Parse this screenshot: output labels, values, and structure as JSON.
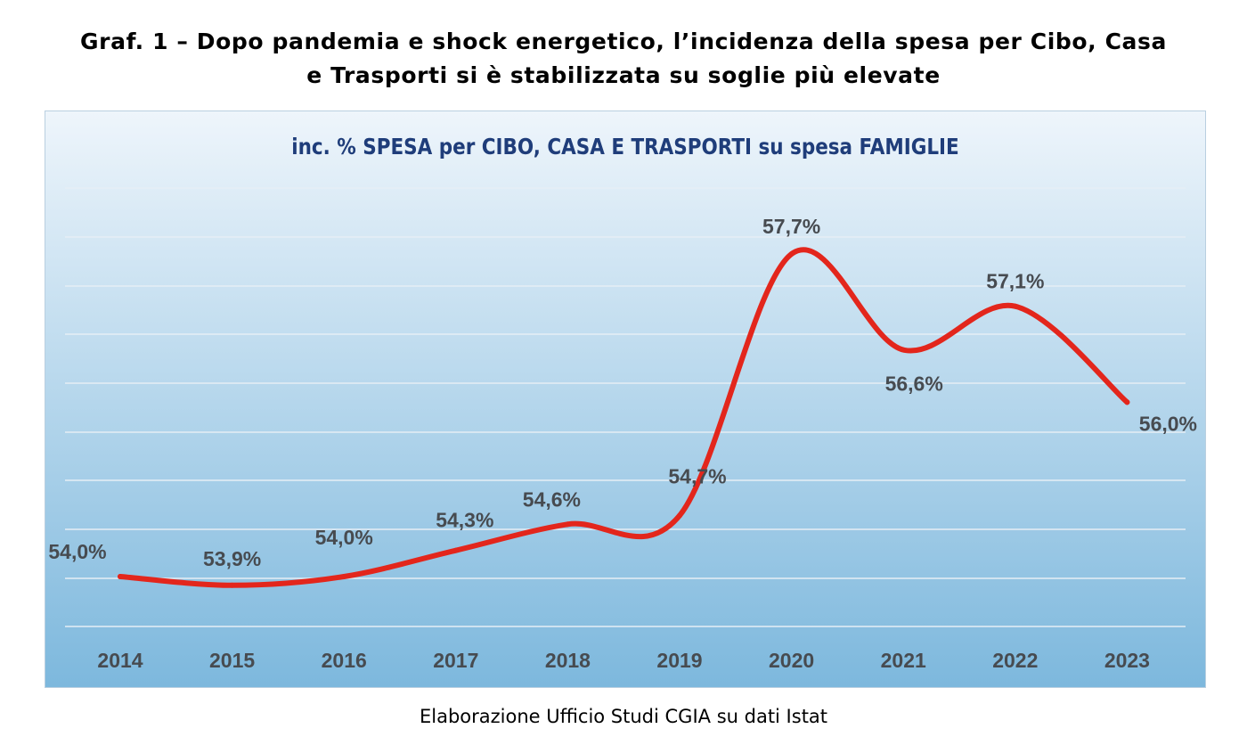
{
  "heading": {
    "line1": "Graf. 1 – Dopo pandemia e shock energetico, l’incidenza della spesa per Cibo, Casa",
    "line2": "e Trasporti si è stabilizzata su soglie più elevate"
  },
  "source_note": "Elaborazione Ufficio Studi CGIA su dati Istat",
  "colors": {
    "line": "#e3261c",
    "title": "#1f3d7a",
    "labels": "#474b50",
    "grid": "#e6eef5",
    "bg_top": "#eef5fb",
    "bg_bottom": "#7db8dd"
  },
  "chart_data": {
    "type": "line",
    "title": "inc. % SPESA per CIBO, CASA E TRASPORTI su spesa FAMIGLIE",
    "xlabel": "",
    "ylabel": "",
    "categories": [
      "2014",
      "2015",
      "2016",
      "2017",
      "2018",
      "2019",
      "2020",
      "2021",
      "2022",
      "2023"
    ],
    "values": [
      54.0,
      53.9,
      54.0,
      54.3,
      54.6,
      54.7,
      57.7,
      56.6,
      57.1,
      56.0
    ],
    "data_labels": [
      "54,0%",
      "53,9%",
      "54,0%",
      "54,3%",
      "54,6%",
      "54,7%",
      "57,7%",
      "56,6%",
      "57,1%",
      "56,0%"
    ],
    "grid": true,
    "smooth": true,
    "legend": "none"
  }
}
